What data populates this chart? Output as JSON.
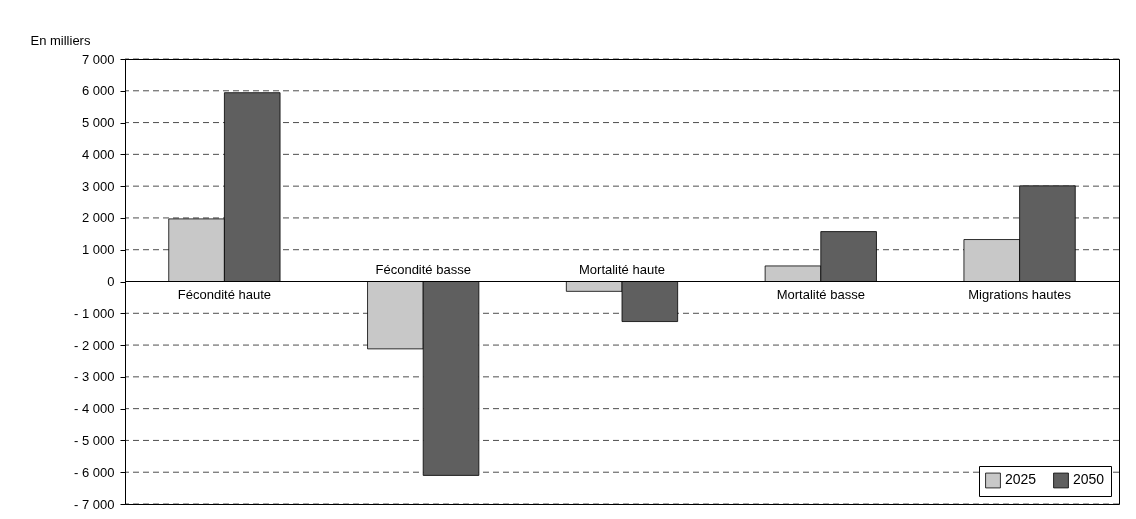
{
  "chart_data": {
    "type": "bar",
    "ylabel": "En milliers",
    "categories": [
      "Fécondité haute",
      "Fécondité basse",
      "Mortalité haute",
      "Mortalité basse",
      "Migrations hautes"
    ],
    "series": [
      {
        "name": "2025",
        "color": "#c8c8c8",
        "values": [
          1970,
          -2120,
          -310,
          490,
          1320
        ]
      },
      {
        "name": "2050",
        "color": "#5f5f5f",
        "values": [
          5940,
          -6100,
          -1260,
          1570,
          3010
        ]
      }
    ],
    "ylim": [
      -7000,
      7000
    ],
    "yticks": [
      {
        "value": -7000,
        "label": "- 7 000"
      },
      {
        "value": -6000,
        "label": "- 6 000"
      },
      {
        "value": -5000,
        "label": "- 5 000"
      },
      {
        "value": -4000,
        "label": "- 4 000"
      },
      {
        "value": -3000,
        "label": "- 3 000"
      },
      {
        "value": -2000,
        "label": "- 2 000"
      },
      {
        "value": -1000,
        "label": "- 1 000"
      },
      0,
      {
        "value": 1000,
        "label": "1 000"
      },
      {
        "value": 2000,
        "label": "2 000"
      },
      {
        "value": 3000,
        "label": "3 000"
      },
      {
        "value": 4000,
        "label": "4 000"
      },
      {
        "value": 5000,
        "label": "5 000"
      },
      {
        "value": 6000,
        "label": "6 000"
      },
      {
        "value": 7000,
        "label": "7 000"
      }
    ],
    "grid": "y",
    "legend": "bottom right"
  }
}
